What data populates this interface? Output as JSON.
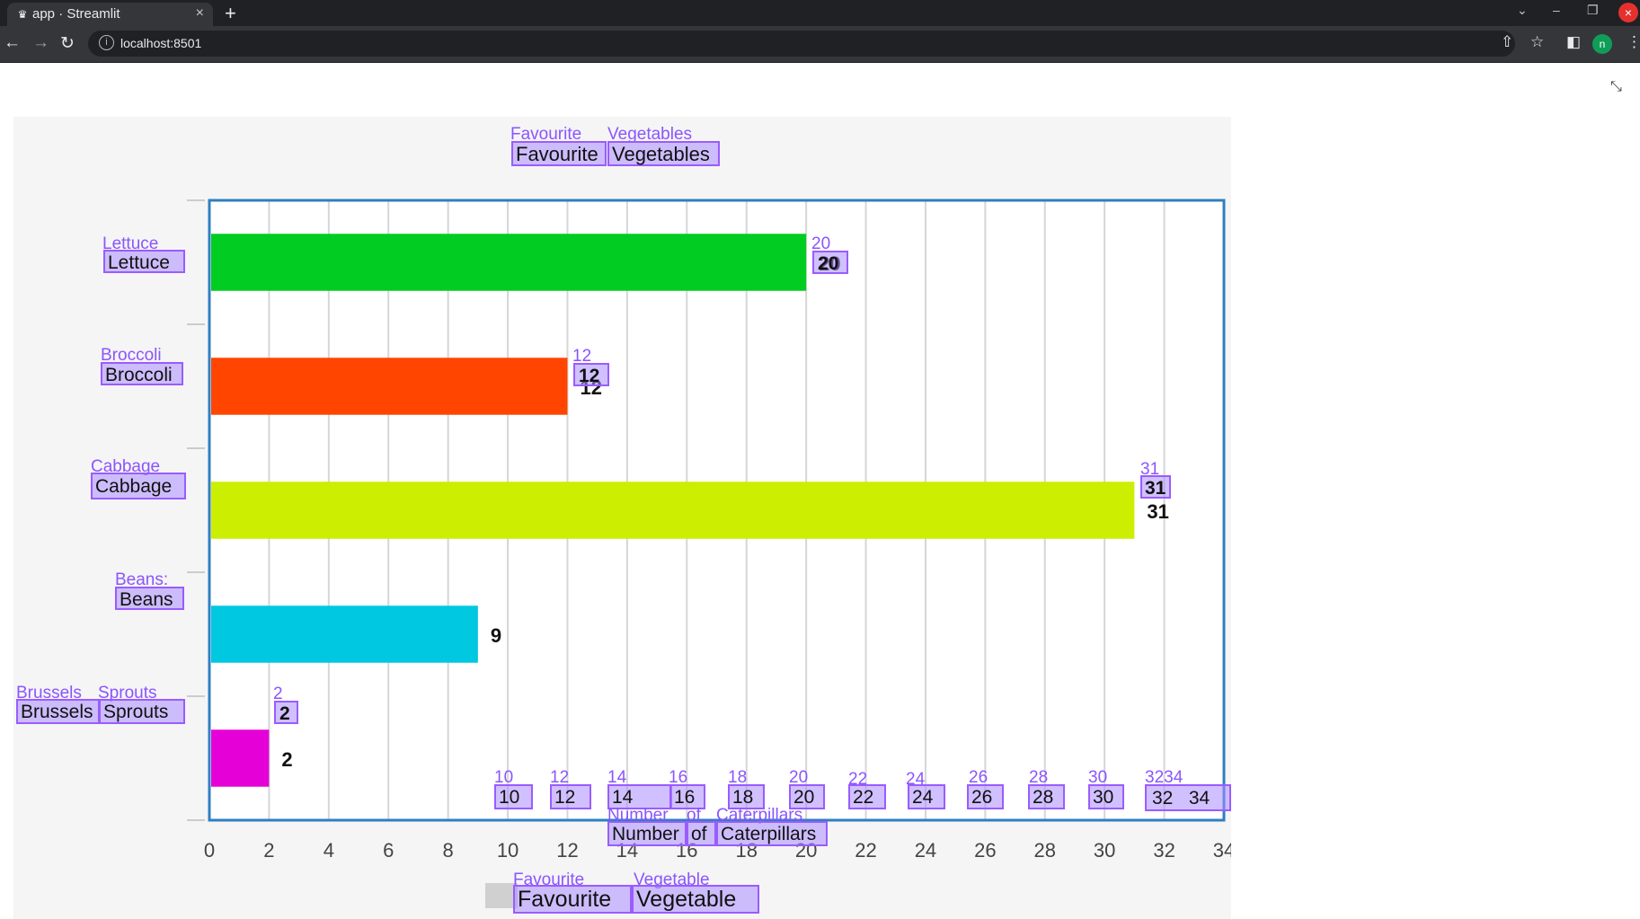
{
  "browser": {
    "tab_title": "app · Streamlit",
    "url": "localhost:8501",
    "profile_initial": "n",
    "accent": "#202124"
  },
  "chart_data": {
    "type": "bar",
    "orientation": "horizontal",
    "title": "Favourite Vegetables",
    "xlabel": "Number of Caterpillars",
    "ylabel": "",
    "legend": "Favourite Vegetable",
    "legend_placement": "bottom",
    "categories": [
      "Lettuce",
      "Broccoli",
      "Cabbage",
      "Beans",
      "Brussels Sprouts"
    ],
    "values": [
      20,
      12,
      31,
      9,
      2
    ],
    "colors": [
      "#00cc22",
      "#ff4500",
      "#ccee00",
      "#00c8e0",
      "#e600d8"
    ],
    "xlim": [
      0,
      34
    ],
    "xticks": [
      0,
      2,
      4,
      6,
      8,
      10,
      12,
      14,
      16,
      18,
      20,
      22,
      24,
      26,
      28,
      30,
      32,
      34
    ],
    "grid": true
  },
  "overlays": {
    "title_words": [
      "Favourite",
      "Vegetables"
    ],
    "xlabel_words": [
      "Number",
      "of",
      "Caterpillars"
    ],
    "legend_words": [
      "Favourite",
      "Vegetable"
    ],
    "category_words": [
      [
        "Lettuce"
      ],
      [
        "Broccoli"
      ],
      [
        "Cabbage"
      ],
      [
        "Beans"
      ],
      [
        "Brussels",
        "Sprouts"
      ]
    ],
    "value_labels": [
      "20",
      "12",
      "31",
      "2"
    ],
    "ghost_beans": "Beans:",
    "tick_labels": [
      "10",
      "12",
      "14",
      "16",
      "18",
      "20",
      "22",
      "24",
      "26",
      "28",
      "30",
      "32",
      "34"
    ],
    "ghost_tick_32_34": "3234"
  }
}
